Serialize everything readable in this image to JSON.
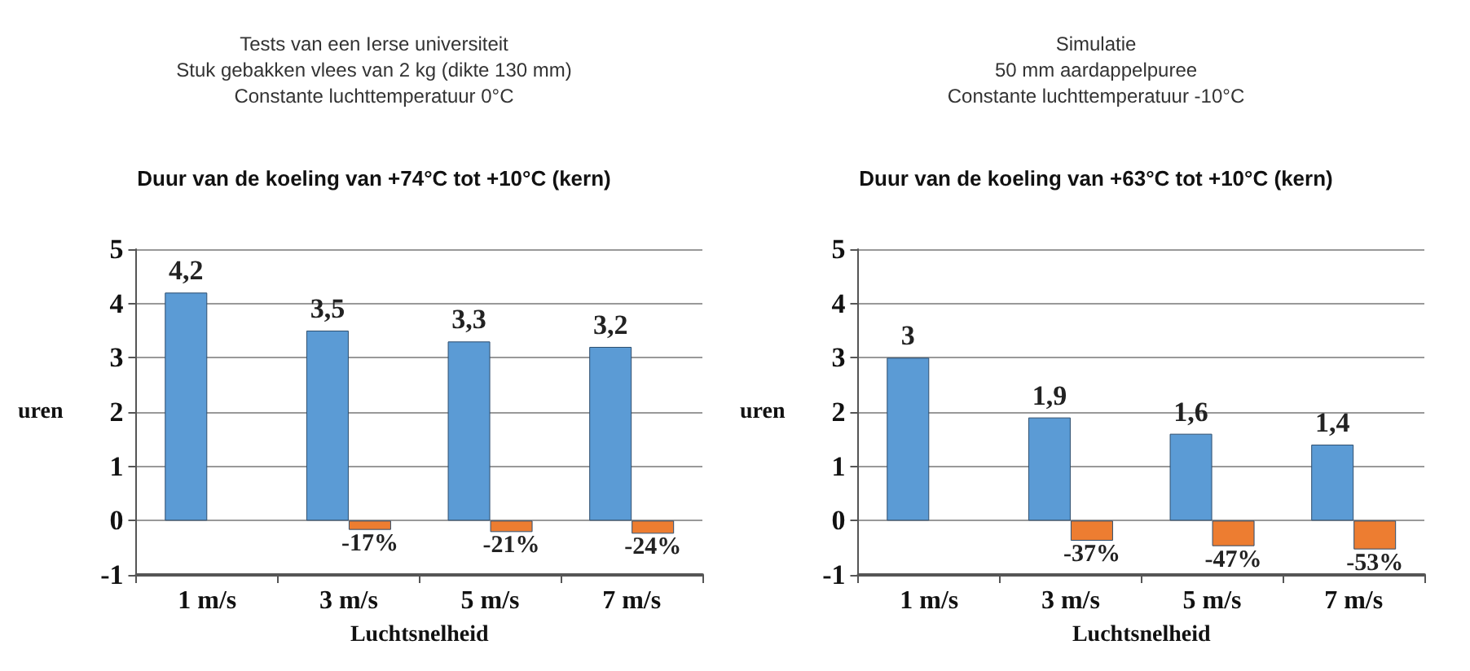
{
  "chart_data": [
    {
      "type": "bar",
      "subtitle": "Tests van een Ierse universiteit\nStuk gebakken vlees van 2 kg (dikte 130 mm)\nConstante luchttemperatuur 0°C",
      "title": "Duur van de koeling van +74°C tot +10°C (kern)",
      "xlabel": "Luchtsnelheid",
      "ylabel": "uren",
      "categories": [
        "1 m/s",
        "3 m/s",
        "5 m/s",
        "7 m/s"
      ],
      "series": [
        {
          "color": "#5b9bd5",
          "values": [
            4.2,
            3.5,
            3.3,
            3.2
          ],
          "value_labels": [
            "4,2",
            "3,5",
            "3,3",
            "3,2"
          ]
        },
        {
          "color": "#ed7d31",
          "values": [
            null,
            -0.17,
            -0.21,
            -0.24
          ],
          "value_labels": [
            null,
            "-17%",
            "-21%",
            "-24%"
          ]
        }
      ],
      "ylim": [
        -1,
        5
      ],
      "yticks": [
        -1,
        0,
        1,
        2,
        3,
        4,
        5
      ],
      "grid": "y"
    },
    {
      "type": "bar",
      "subtitle": "Simulatie\n50 mm aardappelpuree\nConstante luchttemperatuur -10°C",
      "title": "Duur van de koeling van +63°C tot +10°C (kern)",
      "xlabel": "Luchtsnelheid",
      "ylabel": "uren",
      "categories": [
        "1 m/s",
        "3 m/s",
        "5 m/s",
        "7 m/s"
      ],
      "series": [
        {
          "color": "#5b9bd5",
          "values": [
            3,
            1.9,
            1.6,
            1.4
          ],
          "value_labels": [
            "3",
            "1,9",
            "1,6",
            "1,4"
          ]
        },
        {
          "color": "#ed7d31",
          "values": [
            null,
            -0.37,
            -0.47,
            -0.53
          ],
          "value_labels": [
            null,
            "-37%",
            "-47%",
            "-53%"
          ]
        }
      ],
      "ylim": [
        -1,
        5
      ],
      "yticks": [
        -1,
        0,
        1,
        2,
        3,
        4,
        5
      ],
      "grid": "y"
    }
  ]
}
